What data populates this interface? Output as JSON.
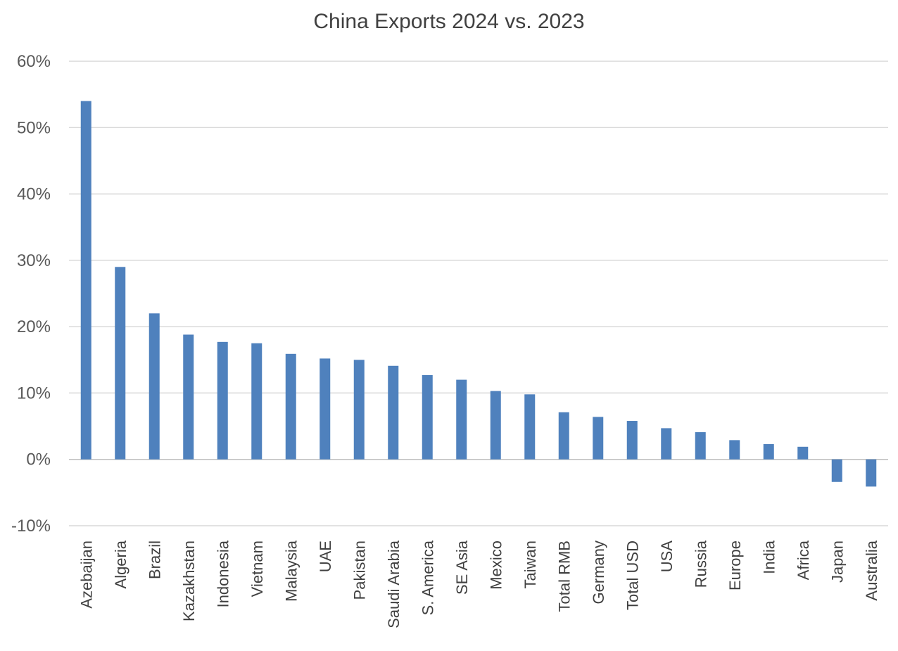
{
  "chart_data": {
    "type": "bar",
    "title": "China Exports 2024 vs. 2023",
    "xlabel": "",
    "ylabel": "",
    "ylim": [
      -10,
      60
    ],
    "yticks": [
      -10,
      0,
      10,
      20,
      30,
      40,
      50,
      60
    ],
    "ytick_labels": [
      "-10%",
      "0%",
      "10%",
      "20%",
      "30%",
      "40%",
      "50%",
      "60%"
    ],
    "grid": true,
    "legend": "none",
    "categories": [
      "Azebaijan",
      "Algeria",
      "Brazil",
      "Kazakhstan",
      "Indonesia",
      "Vietnam",
      "Malaysia",
      "UAE",
      "Pakistan",
      "Saudi Arabia",
      "S. America",
      "SE Asia",
      "Mexico",
      "Taiwan",
      "Total RMB",
      "Germany",
      "Total USD",
      "USA",
      "Russia",
      "Europe",
      "India",
      "Africa",
      "Japan",
      "Australia"
    ],
    "values": [
      54,
      29,
      22,
      18.8,
      17.7,
      17.5,
      15.9,
      15.2,
      15,
      14.1,
      12.7,
      12,
      10.3,
      9.8,
      7.1,
      6.4,
      5.8,
      4.7,
      4.1,
      2.9,
      2.3,
      1.9,
      -3.4,
      -4.1
    ],
    "colors": {
      "bar": "#4f81bd",
      "grid": "#d9d9d9",
      "axis": "#d9d9d9"
    }
  }
}
